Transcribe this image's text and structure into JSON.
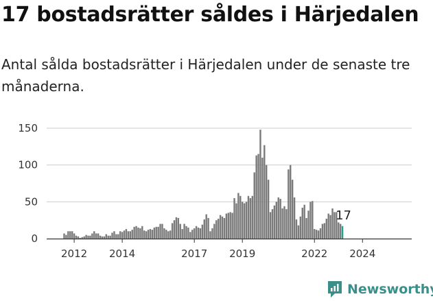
{
  "title": "17 bostadsrätter såldes i Härjedalen",
  "subtitle": "Antal sålda bostadsrätter i Härjedalen under de senaste tre månaderna.",
  "brand": {
    "name": "Newsworthy",
    "icon": "newsworthy-logo-icon",
    "color": "#3a8f8a"
  },
  "colors": {
    "bar": "#7a7a7a",
    "highlight": "#2a9d8f",
    "grid": "#cccccc"
  },
  "chart_data": {
    "type": "bar",
    "x_start": "2011-08",
    "frequency": "monthly",
    "x_ticks": [
      "2012",
      "2014",
      "2017",
      "2019",
      "2022",
      "2024"
    ],
    "y_ticks": [
      0,
      50,
      100,
      150
    ],
    "ylim": [
      0,
      155
    ],
    "last_value_label": "17",
    "values": [
      7,
      5,
      10,
      10,
      10,
      7,
      4,
      3,
      1,
      2,
      3,
      5,
      4,
      4,
      7,
      10,
      7,
      7,
      4,
      3,
      3,
      6,
      4,
      4,
      8,
      10,
      6,
      6,
      10,
      9,
      11,
      13,
      10,
      10,
      12,
      16,
      17,
      15,
      14,
      17,
      11,
      10,
      12,
      13,
      12,
      15,
      16,
      16,
      20,
      20,
      14,
      12,
      10,
      11,
      21,
      25,
      29,
      28,
      20,
      13,
      20,
      17,
      15,
      9,
      12,
      14,
      17,
      15,
      14,
      19,
      26,
      33,
      28,
      10,
      14,
      20,
      25,
      27,
      32,
      30,
      28,
      34,
      35,
      36,
      35,
      55,
      48,
      62,
      58,
      50,
      48,
      50,
      58,
      55,
      58,
      90,
      113,
      115,
      148,
      110,
      127,
      100,
      80,
      36,
      40,
      45,
      50,
      56,
      54,
      41,
      44,
      40,
      94,
      100,
      80,
      56,
      26,
      18,
      30,
      42,
      46,
      28,
      38,
      50,
      51,
      13,
      12,
      11,
      14,
      20,
      21,
      27,
      34,
      32,
      41,
      36,
      36,
      22,
      20,
      17
    ]
  }
}
